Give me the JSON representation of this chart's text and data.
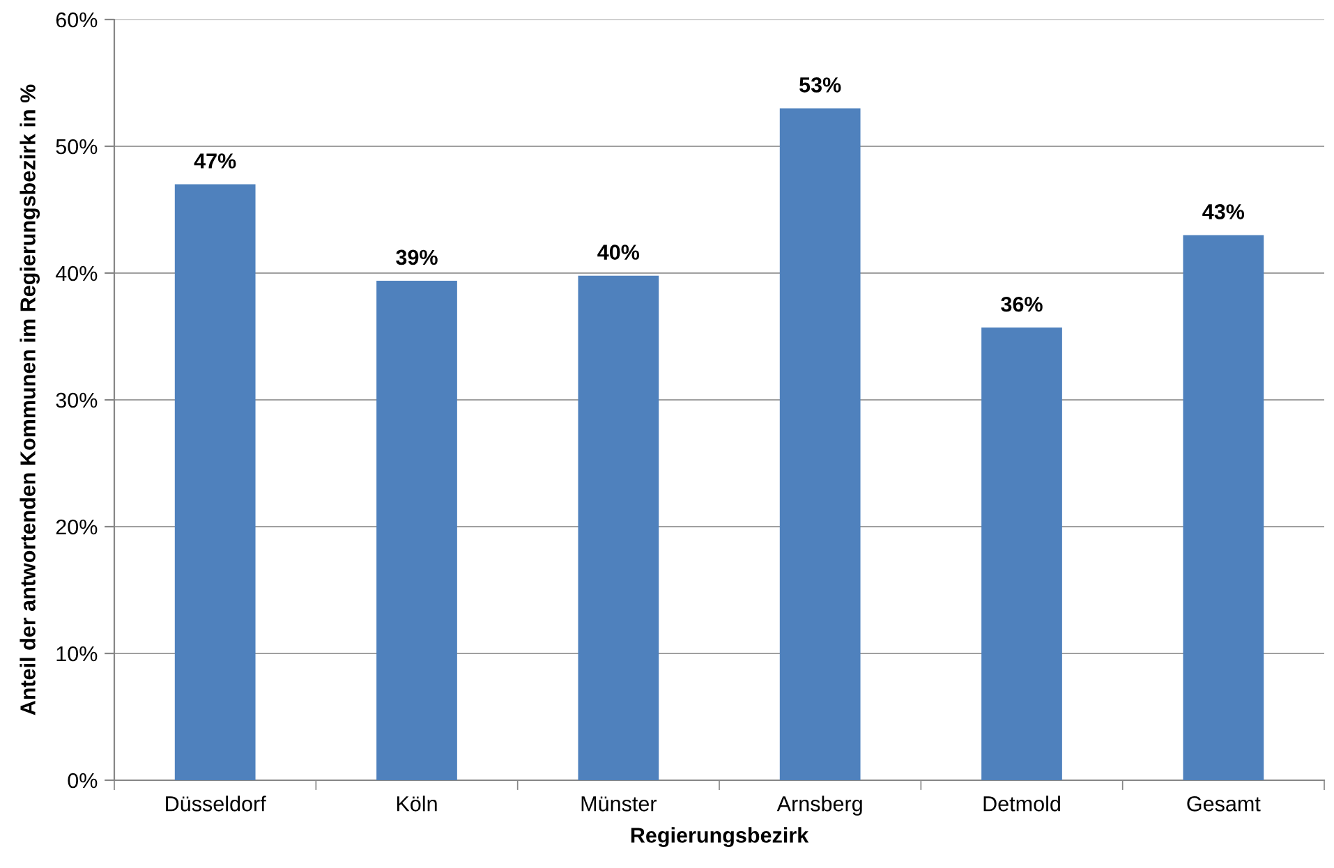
{
  "chart_data": {
    "type": "bar",
    "xlabel": "Regierungsbezirk",
    "ylabel": "Anteil der antwortenden Kommunen im Regierungsbezirk in %",
    "categories": [
      "Düsseldorf",
      "Köln",
      "Münster",
      "Arnsberg",
      "Detmold",
      "Gesamt"
    ],
    "values": [
      47,
      39.4,
      39.8,
      53,
      35.7,
      43
    ],
    "value_labels": [
      "47%",
      "39%",
      "40%",
      "53%",
      "36%",
      "43%"
    ],
    "color": "#4f81bd",
    "ylim": [
      0,
      60
    ],
    "yticks": [
      {
        "value": 0,
        "label": "0%"
      },
      {
        "value": 10,
        "label": "10%"
      },
      {
        "value": 20,
        "label": "20%"
      },
      {
        "value": 30,
        "label": "30%"
      },
      {
        "value": 40,
        "label": "40%"
      },
      {
        "value": 50,
        "label": "50%"
      },
      {
        "value": 60,
        "label": "60%"
      }
    ],
    "grid": "y",
    "legend": false
  }
}
